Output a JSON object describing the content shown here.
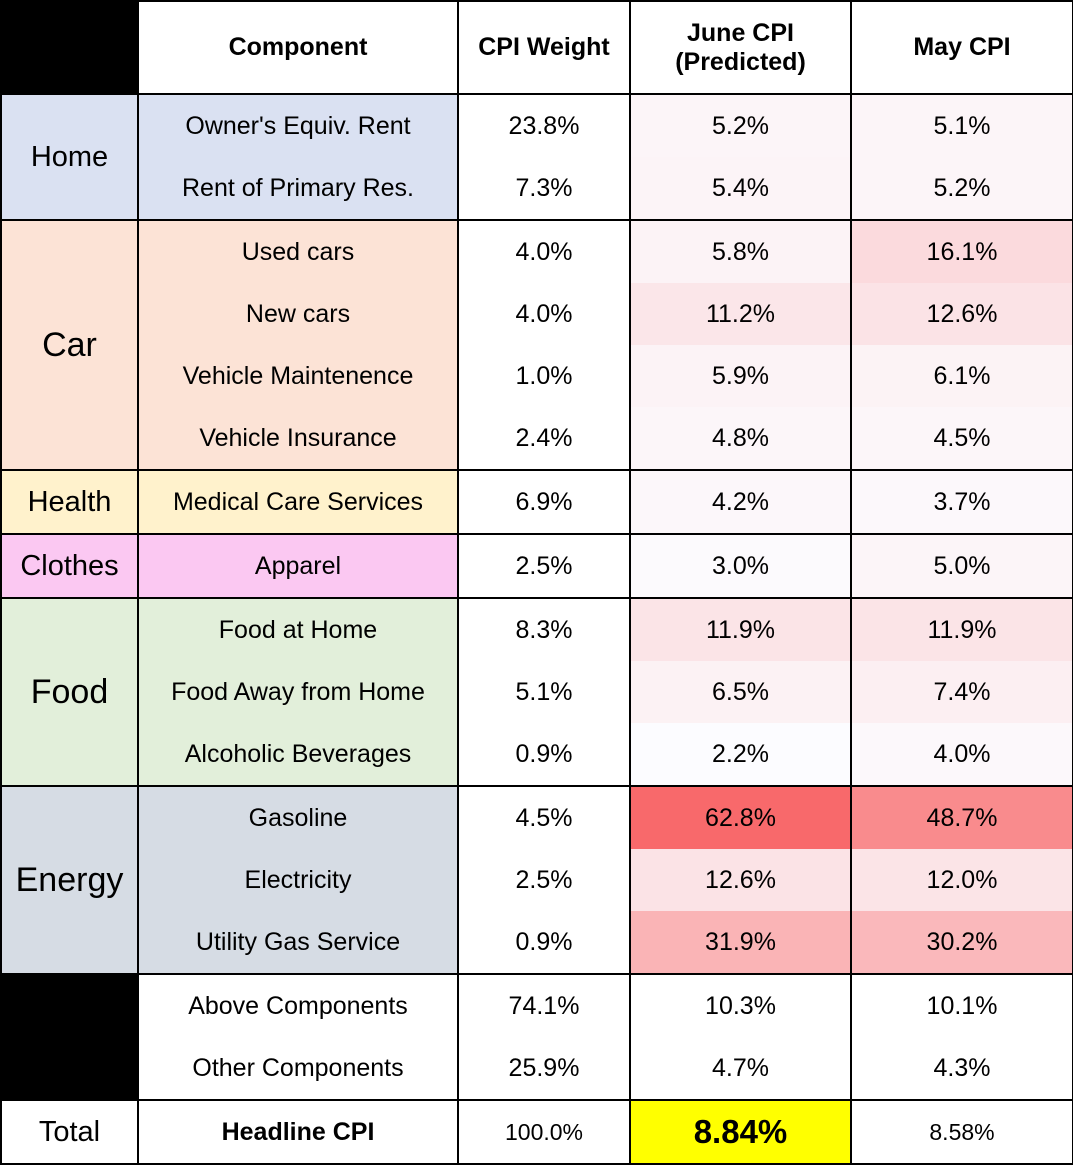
{
  "colors": {
    "Home": "#dae1f2",
    "Car": "#fce3d6",
    "Health": "#fff2cc",
    "Clothes": "#fbc8f2",
    "Food": "#e2efda",
    "Energy": "#d6dce4",
    "summary": "#000000",
    "heat_low": "#fcfcff",
    "heat_high": "#f8696b",
    "highlight": "#ffff00"
  },
  "chart_data": {
    "type": "table",
    "columns": [
      "",
      "Component",
      "CPI Weight",
      "June CPI (Predicted)",
      "May CPI"
    ],
    "groups": [
      {
        "category": "Home",
        "rows": [
          {
            "component": "Owner's Equiv. Rent",
            "weight": "23.8%",
            "june": "5.2%",
            "may": "5.1%"
          },
          {
            "component": "Rent of Primary Res.",
            "weight": "7.3%",
            "june": "5.4%",
            "may": "5.2%"
          }
        ]
      },
      {
        "category": "Car",
        "rows": [
          {
            "component": "Used cars",
            "weight": "4.0%",
            "june": "5.8%",
            "may": "16.1%"
          },
          {
            "component": "New cars",
            "weight": "4.0%",
            "june": "11.2%",
            "may": "12.6%"
          },
          {
            "component": "Vehicle Maintenence",
            "weight": "1.0%",
            "june": "5.9%",
            "may": "6.1%"
          },
          {
            "component": "Vehicle Insurance",
            "weight": "2.4%",
            "june": "4.8%",
            "may": "4.5%"
          }
        ]
      },
      {
        "category": "Health",
        "rows": [
          {
            "component": "Medical Care Services",
            "weight": "6.9%",
            "june": "4.2%",
            "may": "3.7%"
          }
        ]
      },
      {
        "category": "Clothes",
        "rows": [
          {
            "component": "Apparel",
            "weight": "2.5%",
            "june": "3.0%",
            "may": "5.0%"
          }
        ]
      },
      {
        "category": "Food",
        "rows": [
          {
            "component": "Food at Home",
            "weight": "8.3%",
            "june": "11.9%",
            "may": "11.9%"
          },
          {
            "component": "Food Away from Home",
            "weight": "5.1%",
            "june": "6.5%",
            "may": "7.4%"
          },
          {
            "component": "Alcoholic Beverages",
            "weight": "0.9%",
            "june": "2.2%",
            "may": "4.0%"
          }
        ]
      },
      {
        "category": "Energy",
        "rows": [
          {
            "component": "Gasoline",
            "weight": "4.5%",
            "june": "62.8%",
            "may": "48.7%"
          },
          {
            "component": "Electricity",
            "weight": "2.5%",
            "june": "12.6%",
            "may": "12.0%"
          },
          {
            "component": "Utility Gas Service",
            "weight": "0.9%",
            "june": "31.9%",
            "may": "30.2%"
          }
        ]
      },
      {
        "category": "",
        "rows": [
          {
            "component": "Above Components",
            "weight": "74.1%",
            "june": "10.3%",
            "may": "10.1%"
          },
          {
            "component": "Other Components",
            "weight": "25.9%",
            "june": "4.7%",
            "may": "4.3%"
          }
        ]
      }
    ],
    "total": {
      "category": "Total",
      "component": "Headline CPI",
      "weight": "100.0%",
      "june": "8.84%",
      "may": "8.58%"
    },
    "heat_scale": {
      "min": 2.2,
      "max": 62.8
    }
  }
}
